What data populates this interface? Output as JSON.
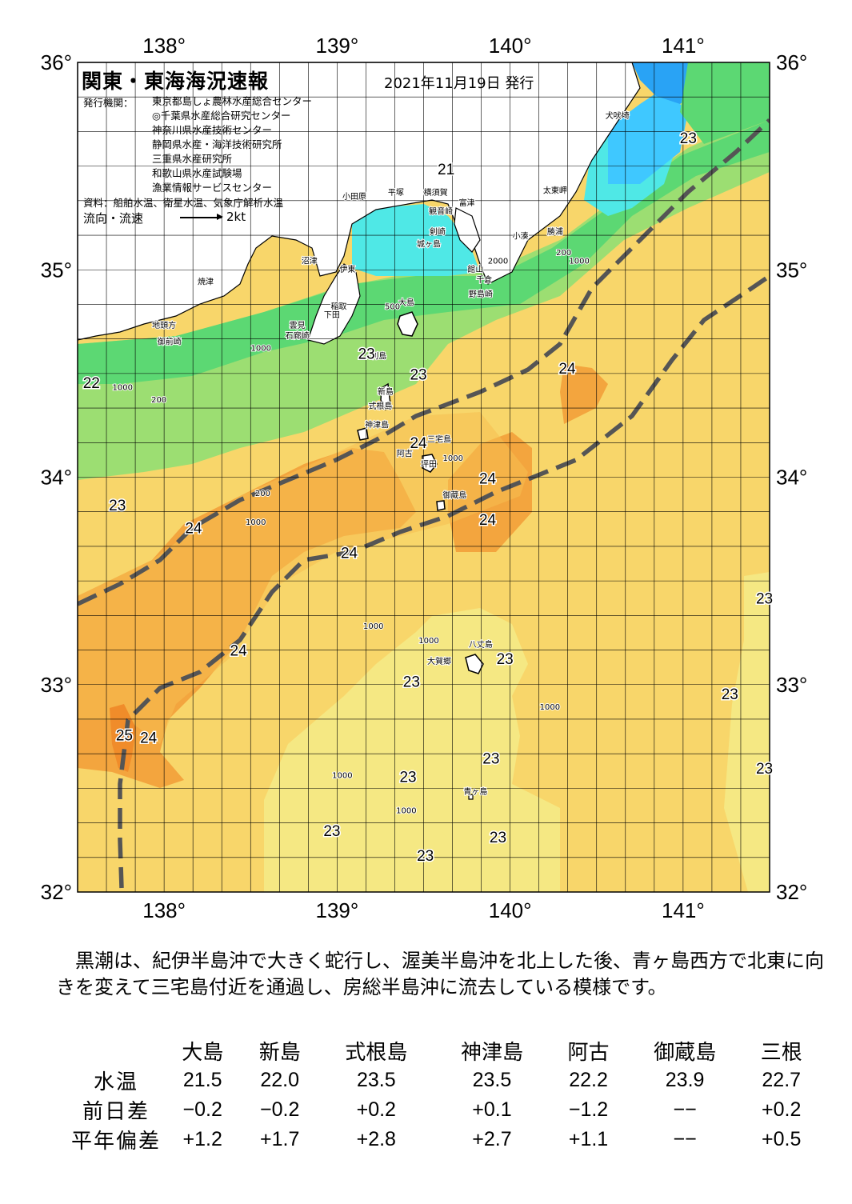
{
  "report": {
    "title": "関東・東海海況速報",
    "date": "2021年11月19日 発行",
    "issuer_label": "発行機関：",
    "issuers": [
      "東京都島しょ農林水産総合センター",
      "◎千葉県水産総合研究センター",
      "神奈川県水産技術センター",
      "静岡県水産・海洋技術研究所",
      "三重県水産研究所",
      "和歌山県水産試験場",
      "漁業情報サービスセンター"
    ],
    "source": "資料：船舶水温、衛星水温、気象庁解析水温",
    "flow_label": "流向・流速",
    "flow_unit": "2kt"
  },
  "axes": {
    "lon_labels": [
      "138°",
      "139°",
      "140°",
      "141°"
    ],
    "lat_labels": [
      "36°",
      "35°",
      "34°",
      "33°",
      "32°"
    ]
  },
  "temperature_labels": [
    {
      "text": "21",
      "lon": 139.63,
      "lat": 35.46
    },
    {
      "text": "23",
      "lon": 141.03,
      "lat": 35.61
    },
    {
      "text": "22",
      "lon": 137.58,
      "lat": 34.43
    },
    {
      "text": "23",
      "lon": 139.17,
      "lat": 34.57
    },
    {
      "text": "23",
      "lon": 139.47,
      "lat": 34.47
    },
    {
      "text": "24",
      "lon": 140.33,
      "lat": 34.5
    },
    {
      "text": "24",
      "lon": 139.47,
      "lat": 34.14
    },
    {
      "text": "24",
      "lon": 139.87,
      "lat": 33.97
    },
    {
      "text": "23",
      "lon": 137.73,
      "lat": 33.84
    },
    {
      "text": "24",
      "lon": 138.17,
      "lat": 33.73
    },
    {
      "text": "24",
      "lon": 139.87,
      "lat": 33.77
    },
    {
      "text": "24",
      "lon": 139.07,
      "lat": 33.61
    },
    {
      "text": "23",
      "lon": 141.47,
      "lat": 33.39
    },
    {
      "text": "24",
      "lon": 138.43,
      "lat": 33.14
    },
    {
      "text": "23",
      "lon": 139.97,
      "lat": 33.1
    },
    {
      "text": "23",
      "lon": 139.43,
      "lat": 32.99
    },
    {
      "text": "23",
      "lon": 141.27,
      "lat": 32.93
    },
    {
      "text": "25",
      "lon": 137.77,
      "lat": 32.73
    },
    {
      "text": "24",
      "lon": 137.91,
      "lat": 32.72
    },
    {
      "text": "23",
      "lon": 139.89,
      "lat": 32.62
    },
    {
      "text": "23",
      "lon": 141.47,
      "lat": 32.57
    },
    {
      "text": "23",
      "lon": 139.41,
      "lat": 32.53
    },
    {
      "text": "23",
      "lon": 138.97,
      "lat": 32.27
    },
    {
      "text": "23",
      "lon": 139.93,
      "lat": 32.24
    },
    {
      "text": "23",
      "lon": 139.51,
      "lat": 32.15
    }
  ],
  "place_labels": [
    {
      "text": "犬吠埼",
      "lon": 140.62,
      "lat": 35.73
    },
    {
      "text": "太東岬",
      "lon": 140.26,
      "lat": 35.37
    },
    {
      "text": "勝浦",
      "lon": 140.26,
      "lat": 35.17
    },
    {
      "text": "小湊",
      "lon": 140.06,
      "lat": 35.15
    },
    {
      "text": "富津",
      "lon": 139.75,
      "lat": 35.31
    },
    {
      "text": "館山",
      "lon": 139.8,
      "lat": 34.99
    },
    {
      "text": "千倉",
      "lon": 139.85,
      "lat": 34.94
    },
    {
      "text": "野島崎",
      "lon": 139.83,
      "lat": 34.87
    },
    {
      "text": "平塚",
      "lon": 139.34,
      "lat": 35.36
    },
    {
      "text": "横須賀",
      "lon": 139.57,
      "lat": 35.36
    },
    {
      "text": "観音崎",
      "lon": 139.6,
      "lat": 35.27
    },
    {
      "text": "剣崎",
      "lon": 139.58,
      "lat": 35.17
    },
    {
      "text": "城ヶ島",
      "lon": 139.53,
      "lat": 35.11
    },
    {
      "text": "小田原",
      "lon": 139.1,
      "lat": 35.34
    },
    {
      "text": "大島",
      "lon": 139.4,
      "lat": 34.83
    },
    {
      "text": "沼津",
      "lon": 138.84,
      "lat": 35.03
    },
    {
      "text": "伊東",
      "lon": 139.06,
      "lat": 34.99
    },
    {
      "text": "稲取",
      "lon": 139.01,
      "lat": 34.81
    },
    {
      "text": "下田",
      "lon": 138.97,
      "lat": 34.77
    },
    {
      "text": "雲見",
      "lon": 138.77,
      "lat": 34.72
    },
    {
      "text": "石廊崎",
      "lon": 138.77,
      "lat": 34.67
    },
    {
      "text": "焼津",
      "lon": 138.24,
      "lat": 34.93
    },
    {
      "text": "地頭方",
      "lon": 138.0,
      "lat": 34.72
    },
    {
      "text": "御前崎",
      "lon": 138.03,
      "lat": 34.64
    },
    {
      "text": "利島",
      "lon": 139.24,
      "lat": 34.57
    },
    {
      "text": "新島",
      "lon": 139.28,
      "lat": 34.4
    },
    {
      "text": "式根島",
      "lon": 139.25,
      "lat": 34.33
    },
    {
      "text": "神津島",
      "lon": 139.23,
      "lat": 34.24
    },
    {
      "text": "三宅島",
      "lon": 139.59,
      "lat": 34.17
    },
    {
      "text": "坪田",
      "lon": 139.53,
      "lat": 34.05
    },
    {
      "text": "阿古",
      "lon": 139.39,
      "lat": 34.1
    },
    {
      "text": "御蔵島",
      "lon": 139.68,
      "lat": 33.9
    },
    {
      "text": "八丈島",
      "lon": 139.83,
      "lat": 33.18
    },
    {
      "text": "大賀郷",
      "lon": 139.59,
      "lat": 33.1
    },
    {
      "text": "青ヶ島",
      "lon": 139.8,
      "lat": 32.47
    },
    {
      "text": "500",
      "lon": 139.32,
      "lat": 34.81
    },
    {
      "text": "1000",
      "lon": 137.76,
      "lat": 34.42
    },
    {
      "text": "200",
      "lon": 137.97,
      "lat": 34.36
    },
    {
      "text": "1000",
      "lon": 138.56,
      "lat": 34.61
    },
    {
      "text": "200",
      "lon": 138.57,
      "lat": 33.91
    },
    {
      "text": "1000",
      "lon": 138.53,
      "lat": 33.77
    },
    {
      "text": "2000",
      "lon": 139.93,
      "lat": 35.03
    },
    {
      "text": "1000",
      "lon": 140.4,
      "lat": 35.03
    },
    {
      "text": "200",
      "lon": 140.31,
      "lat": 35.07
    },
    {
      "text": "1000",
      "lon": 139.21,
      "lat": 33.27
    },
    {
      "text": "1000",
      "lon": 139.53,
      "lat": 33.2
    },
    {
      "text": "1000",
      "lon": 140.23,
      "lat": 32.88
    },
    {
      "text": "1000",
      "lon": 139.03,
      "lat": 32.55
    },
    {
      "text": "1000",
      "lon": 139.4,
      "lat": 32.38
    },
    {
      "text": "1000",
      "lon": 139.67,
      "lat": 34.08
    }
  ],
  "colors": {
    "t18": "#29a3f5",
    "t19": "#3fc8ff",
    "t20": "#4fe8e6",
    "t21": "#5cd873",
    "t22": "#9cde72",
    "t23": "#f5e883",
    "t23b": "#f8d66a",
    "t24": "#f5c050",
    "t24b": "#f3a53e",
    "land": "#ffffff",
    "kuroshio": "#555555",
    "grid": "#000000"
  },
  "summary": "黒潮は、紀伊半島沖で大きく蛇行し、渥美半島沖を北上した後、青ヶ島西方で北東に向きを変えて三宅島付近を通過し、房総半島沖に流去している模様です。",
  "table": {
    "stations": [
      "大島",
      "新島",
      "式根島",
      "神津島",
      "阿古",
      "御蔵島",
      "三根"
    ],
    "rows": [
      {
        "label": "水温",
        "values": [
          "21.5",
          "22.0",
          "23.5",
          "23.5",
          "22.2",
          "23.9",
          "22.7"
        ]
      },
      {
        "label": "前日差",
        "values": [
          "−0.2",
          "−0.2",
          "+0.2",
          "+0.1",
          "−1.2",
          "−−",
          "+0.2"
        ]
      },
      {
        "label": "平年偏差",
        "values": [
          "+1.2",
          "+1.7",
          "+2.8",
          "+2.7",
          "+1.1",
          "−−",
          "+0.5"
        ]
      }
    ]
  }
}
